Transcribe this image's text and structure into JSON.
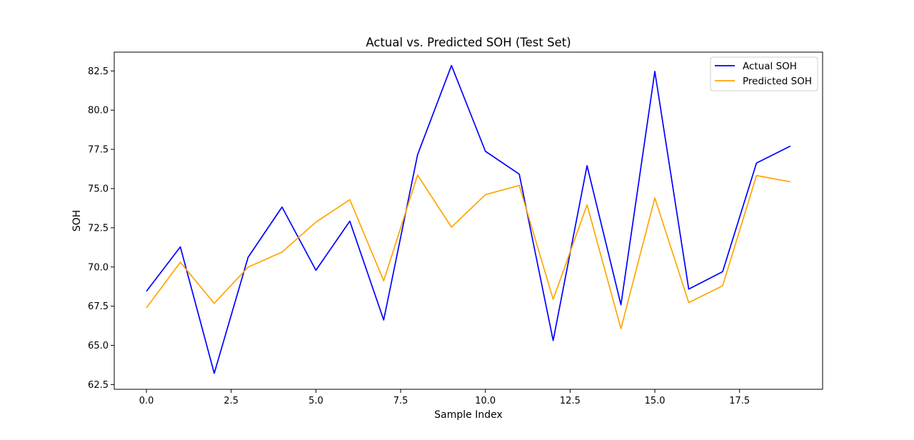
{
  "chart_data": {
    "type": "line",
    "title": "Actual vs. Predicted SOH (Test Set)",
    "xlabel": "Sample Index",
    "ylabel": "SOH",
    "xlim": [
      -0.95,
      19.95
    ],
    "ylim": [
      62.2,
      83.7
    ],
    "xticks": [
      0.0,
      2.5,
      5.0,
      7.5,
      10.0,
      12.5,
      15.0,
      17.5
    ],
    "xtick_labels": [
      "0.0",
      "2.5",
      "5.0",
      "7.5",
      "10.0",
      "12.5",
      "15.0",
      "17.5"
    ],
    "yticks": [
      62.5,
      65.0,
      67.5,
      70.0,
      72.5,
      75.0,
      77.5,
      80.0,
      82.5
    ],
    "ytick_labels": [
      "62.5",
      "65.0",
      "67.5",
      "70.0",
      "72.5",
      "75.0",
      "77.5",
      "80.0",
      "82.5"
    ],
    "grid": false,
    "legend_position": "top-right",
    "x": [
      0,
      1,
      2,
      3,
      4,
      5,
      6,
      7,
      8,
      9,
      10,
      11,
      12,
      13,
      14,
      15,
      16,
      17,
      18,
      19
    ],
    "series": [
      {
        "name": "Actual SOH",
        "color": "#0000ff",
        "values": [
          68.45,
          71.28,
          63.22,
          70.62,
          73.82,
          69.79,
          72.92,
          66.62,
          77.16,
          82.85,
          77.38,
          75.92,
          65.31,
          76.46,
          67.59,
          82.47,
          68.59,
          69.7,
          76.63,
          77.71
        ]
      },
      {
        "name": "Predicted SOH",
        "color": "#ffa500",
        "values": [
          67.4,
          70.3,
          67.68,
          69.99,
          70.95,
          72.86,
          74.29,
          69.12,
          75.86,
          72.54,
          74.61,
          75.2,
          67.94,
          73.96,
          66.07,
          74.4,
          67.73,
          68.8,
          75.83,
          75.43
        ]
      }
    ]
  }
}
